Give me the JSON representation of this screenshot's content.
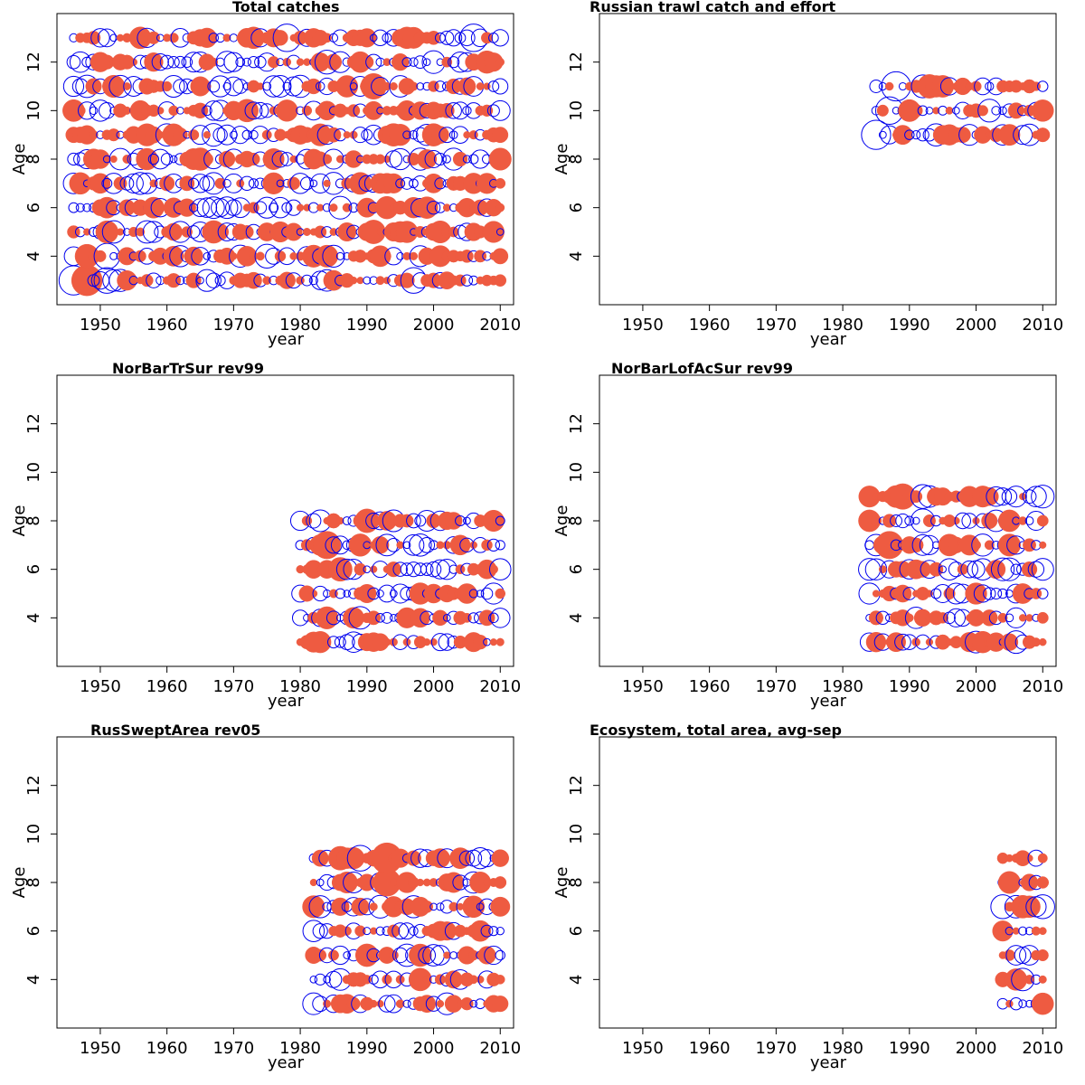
{
  "figure": {
    "colors": {
      "positive": "#EE5B41",
      "negative": "#0000EE",
      "axis": "#000000",
      "background": "#ffffff"
    },
    "panels_layout": "3 rows x 2 columns"
  },
  "chart_data": [
    {
      "type": "scatter",
      "subtype": "bubble",
      "title": "Total catches",
      "xlabel": "year",
      "ylabel": "Age",
      "xlim": [
        1943.5,
        2012
      ],
      "ylim": [
        2,
        14
      ],
      "xticks": [
        1950,
        1960,
        1970,
        1980,
        1990,
        2000,
        2010
      ],
      "yticks": [
        4,
        6,
        8,
        10,
        12
      ],
      "grid": false,
      "legend": "none",
      "years": [
        1946,
        2010
      ],
      "ages": [
        3,
        13
      ],
      "series": [
        {
          "label": "Total catches",
          "ages": [
            3,
            4,
            5,
            6,
            7,
            8,
            9,
            10,
            11,
            12,
            13
          ],
          "years": [
            1946,
            2010
          ],
          "sample": [
            {
              "year": 1946,
              "age": 3,
              "value": -0.9
            },
            {
              "year": 1948,
              "age": 3,
              "value": 1.0
            },
            {
              "year": 1951,
              "age": 3,
              "value": -0.7
            },
            {
              "year": 1948,
              "age": 4,
              "value": 0.6
            },
            {
              "year": 1951,
              "age": 4,
              "value": -0.7
            },
            {
              "year": 1975,
              "age": 4,
              "value": -0.6
            },
            {
              "year": 1978,
              "age": 13,
              "value": -0.8
            },
            {
              "year": 1991,
              "age": 5,
              "value": 0.6
            },
            {
              "year": 1997,
              "age": 3,
              "value": -0.7
            },
            {
              "year": 2006,
              "age": 13,
              "value": -0.8
            },
            {
              "year": 1991,
              "age": 11,
              "value": 0.7
            },
            {
              "year": 1984,
              "age": 12,
              "value": -0.6
            }
          ]
        }
      ]
    },
    {
      "type": "scatter",
      "subtype": "bubble",
      "title": "Russian trawl catch and effort",
      "xlabel": "year",
      "ylabel": "Age",
      "xlim": [
        1943.5,
        2012
      ],
      "ylim": [
        2,
        14
      ],
      "xticks": [
        1950,
        1960,
        1970,
        1980,
        1990,
        2000,
        2010
      ],
      "yticks": [
        4,
        6,
        8,
        10,
        12
      ],
      "grid": false,
      "legend": "none",
      "years": [
        1985,
        2010
      ],
      "ages": [
        9,
        11
      ],
      "series": [
        {
          "label": "Russian trawl catch and effort",
          "ages": [
            9,
            10,
            11
          ],
          "years": [
            1985,
            2010
          ],
          "sample": [
            {
              "year": 1985,
              "age": 9,
              "value": -0.9
            },
            {
              "year": 1988,
              "age": 11,
              "value": -0.9
            },
            {
              "year": 1987,
              "age": 10,
              "value": -0.8
            },
            {
              "year": 1993,
              "age": 11,
              "value": 0.6
            },
            {
              "year": 1994,
              "age": 11,
              "value": 0.5
            },
            {
              "year": 2010,
              "age": 10,
              "value": 0.5
            }
          ]
        }
      ]
    },
    {
      "type": "scatter",
      "subtype": "bubble",
      "title": "NorBarTrSur rev99",
      "xlabel": "year",
      "ylabel": "Age",
      "xlim": [
        1943.5,
        2012
      ],
      "ylim": [
        2,
        14
      ],
      "xticks": [
        1950,
        1960,
        1970,
        1980,
        1990,
        2000,
        2010
      ],
      "yticks": [
        4,
        6,
        8,
        10,
        12
      ],
      "grid": false,
      "legend": "none",
      "years": [
        1980,
        2010
      ],
      "ages": [
        3,
        8
      ],
      "series": [
        {
          "label": "NorBarTrSur rev99",
          "ages": [
            3,
            4,
            5,
            6,
            7,
            8
          ],
          "years": [
            1980,
            2010
          ],
          "sample": [
            {
              "year": 1983,
              "age": 8,
              "value": 1.0
            },
            {
              "year": 1983,
              "age": 8,
              "value": -0.5
            },
            {
              "year": 1984,
              "age": 7,
              "value": 0.8
            },
            {
              "year": 1986,
              "age": 6,
              "value": 0.6
            },
            {
              "year": 1990,
              "age": 8,
              "value": 0.6
            },
            {
              "year": 2006,
              "age": 3,
              "value": 0.4
            },
            {
              "year": 2010,
              "age": 4,
              "value": -0.4
            }
          ]
        }
      ]
    },
    {
      "type": "scatter",
      "subtype": "bubble",
      "title": "NorBarLofAcSur rev99",
      "xlabel": "year",
      "ylabel": "Age",
      "xlim": [
        1943.5,
        2012
      ],
      "ylim": [
        2,
        14
      ],
      "xticks": [
        1950,
        1960,
        1970,
        1980,
        1990,
        2000,
        2010
      ],
      "yticks": [
        4,
        6,
        8,
        10,
        12
      ],
      "grid": false,
      "legend": "none",
      "years": [
        1984,
        2010
      ],
      "ages": [
        3,
        9
      ],
      "series": [
        {
          "label": "NorBarLofAcSur rev99",
          "ages": [
            3,
            4,
            5,
            6,
            7,
            8,
            9
          ],
          "years": [
            1984,
            2010
          ],
          "sample": [
            {
              "year": 1987,
              "age": 7,
              "value": 0.8
            },
            {
              "year": 1989,
              "age": 9,
              "value": 0.7
            },
            {
              "year": 1992,
              "age": 9,
              "value": -0.6
            },
            {
              "year": 1992,
              "age": 8,
              "value": -0.6
            },
            {
              "year": 1984,
              "age": 6,
              "value": -0.5
            },
            {
              "year": 2010,
              "age": 6,
              "value": -0.5
            }
          ]
        }
      ]
    },
    {
      "type": "scatter",
      "subtype": "bubble",
      "title": "RusSweptArea rev05",
      "xlabel": "year",
      "ylabel": "Age",
      "xlim": [
        1943.5,
        2012
      ],
      "ylim": [
        2,
        14
      ],
      "xticks": [
        1950,
        1960,
        1970,
        1980,
        1990,
        2000,
        2010
      ],
      "yticks": [
        4,
        6,
        8,
        10,
        12
      ],
      "grid": false,
      "legend": "none",
      "years": [
        1982,
        2010
      ],
      "ages": [
        3,
        9
      ],
      "series": [
        {
          "label": "RusSweptArea rev05",
          "ages": [
            3,
            4,
            5,
            6,
            7,
            8,
            9
          ],
          "years": [
            1982,
            2010
          ],
          "sample": [
            {
              "year": 1993,
              "age": 9,
              "value": 1.0
            },
            {
              "year": 1993,
              "age": 8,
              "value": 0.8
            },
            {
              "year": 1989,
              "age": 9,
              "value": -0.7
            },
            {
              "year": 1986,
              "age": 9,
              "value": 0.6
            },
            {
              "year": 1982,
              "age": 3,
              "value": -0.5
            }
          ]
        }
      ]
    },
    {
      "type": "scatter",
      "subtype": "bubble",
      "title": "Ecosystem, total area, avg-sep",
      "xlabel": "year",
      "ylabel": "Age",
      "xlim": [
        1943.5,
        2012
      ],
      "ylim": [
        2,
        14
      ],
      "xticks": [
        1950,
        1960,
        1970,
        1980,
        1990,
        2000,
        2010
      ],
      "yticks": [
        4,
        6,
        8,
        10,
        12
      ],
      "grid": false,
      "legend": "none",
      "years": [
        2004,
        2010
      ],
      "ages": [
        3,
        9
      ],
      "series": [
        {
          "label": "Ecosystem, total area, avg-sep",
          "ages": [
            3,
            4,
            5,
            6,
            7,
            8,
            9
          ],
          "years": [
            2004,
            2010
          ],
          "sample": [
            {
              "year": 2004,
              "age": 7,
              "value": -0.6
            },
            {
              "year": 2010,
              "age": 7,
              "value": -0.6
            },
            {
              "year": 2008,
              "age": 7,
              "value": 0.5
            },
            {
              "year": 2010,
              "age": 3,
              "value": 0.5
            },
            {
              "year": 2006,
              "age": 4,
              "value": 0.5
            }
          ]
        }
      ]
    }
  ]
}
